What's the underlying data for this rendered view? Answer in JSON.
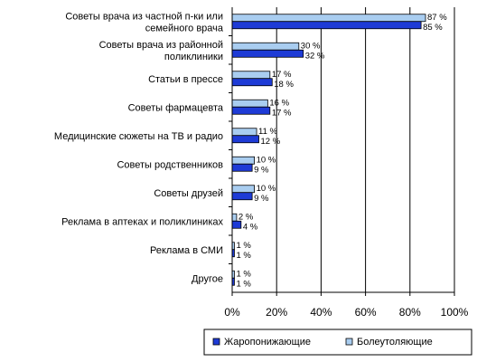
{
  "chart_data": {
    "type": "bar",
    "orientation": "horizontal",
    "categories": [
      [
        "Советы врача из частной п-ки или",
        "семейного врача"
      ],
      [
        "Советы врача из районной",
        "поликлиники"
      ],
      [
        "Статьи в прессе"
      ],
      [
        "Советы фармацевта"
      ],
      [
        "Медицинские сюжеты на ТВ и радио"
      ],
      [
        "Советы родственников"
      ],
      [
        "Советы друзей"
      ],
      [
        "Реклама в аптеках и поликлиниках"
      ],
      [
        "Реклама в СМИ"
      ],
      [
        "Другое"
      ]
    ],
    "series": [
      {
        "name": "Жаропонижающие",
        "color": "#1e3bd6",
        "values": [
          85,
          32,
          18,
          17,
          12,
          9,
          9,
          4,
          1,
          1
        ]
      },
      {
        "name": "Болеутоляющие",
        "color": "#a9cdf0",
        "values": [
          87,
          30,
          17,
          16,
          11,
          10,
          10,
          2,
          1,
          1
        ]
      }
    ],
    "value_labels": {
      "Жаропонижающие": [
        "85 %",
        "32 %",
        "18 %",
        "17 %",
        "12 %",
        "9 %",
        "9 %",
        "4 %",
        "1 %",
        "1 %"
      ],
      "Болеутоляющие": [
        "87 %",
        "30 %",
        "17 %",
        "16 %",
        "11 %",
        "10 %",
        "10 %",
        "2 %",
        "1 %",
        "1 %"
      ]
    },
    "xlim": [
      0,
      100
    ],
    "xticks": [
      "0%",
      "20%",
      "40%",
      "60%",
      "80%",
      "100%"
    ],
    "grid": true,
    "legend_position": "bottom-right"
  }
}
